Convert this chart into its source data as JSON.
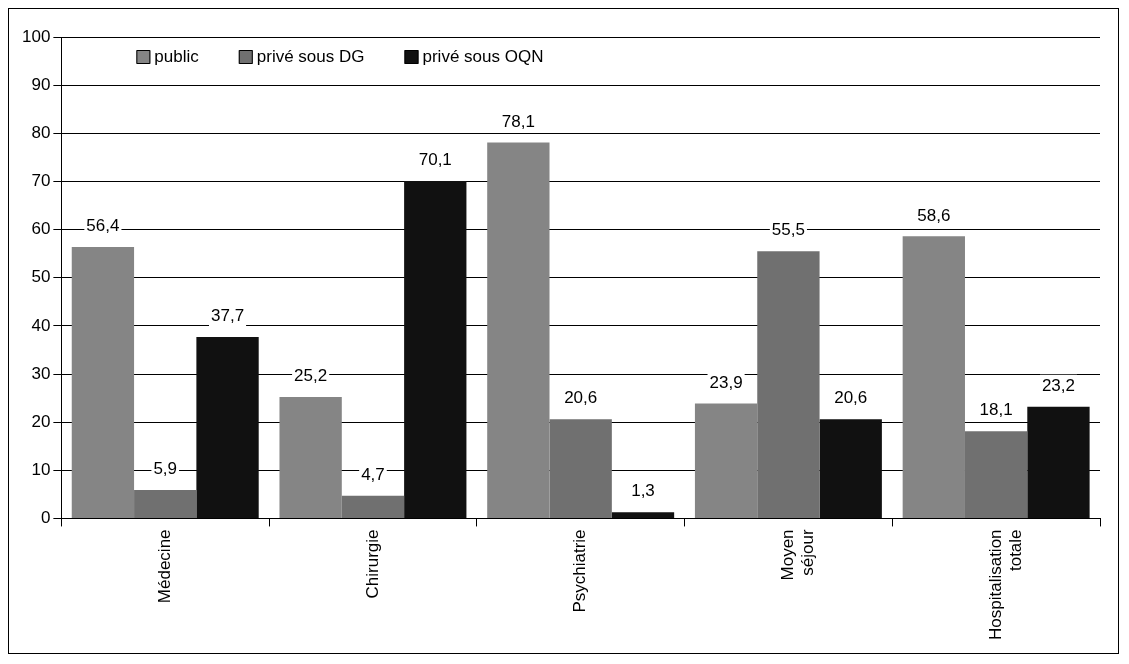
{
  "chart_data": {
    "type": "bar",
    "categories": [
      "Médecine",
      "Chirurgie",
      "Psychiatrie",
      "Moyen séjour",
      "Hospitalisation totale"
    ],
    "series": [
      {
        "name": "public",
        "color": "#858585",
        "values": [
          56.4,
          25.2,
          78.1,
          23.9,
          58.6
        ],
        "value_labels": [
          "56,4",
          "25,2",
          "78,1",
          "23,9",
          "58,6"
        ]
      },
      {
        "name": "privé sous DG",
        "color": "#707070",
        "values": [
          5.9,
          4.7,
          20.6,
          55.5,
          18.1
        ],
        "value_labels": [
          "5,9",
          "4,7",
          "20,6",
          "55,5",
          "18,1"
        ]
      },
      {
        "name": "privé sous OQN",
        "color": "#111111",
        "values": [
          37.7,
          70.1,
          1.3,
          20.6,
          23.2
        ],
        "value_labels": [
          "37,7",
          "70,1",
          "1,3",
          "20,6",
          "23,2"
        ]
      }
    ],
    "ylim": [
      0,
      100
    ],
    "yticks": [
      0,
      10,
      20,
      30,
      40,
      50,
      60,
      70,
      80,
      90,
      100
    ],
    "grid": "y",
    "legend": "top left"
  }
}
